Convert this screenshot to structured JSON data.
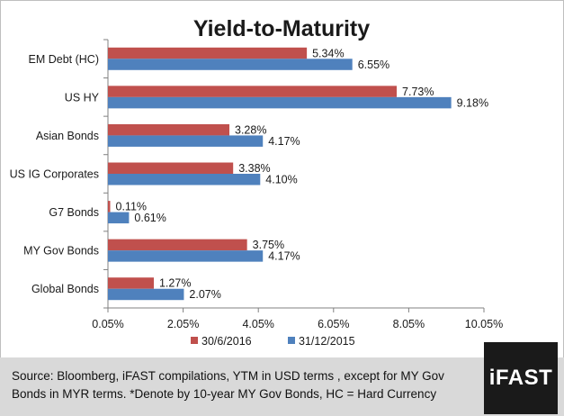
{
  "chart_data": {
    "type": "bar",
    "orientation": "horizontal",
    "title": "Yield-to-Maturity",
    "categories": [
      "EM Debt (HC)",
      "US HY",
      "Asian Bonds",
      "US IG Corporates",
      "G7 Bonds",
      "MY Gov Bonds",
      "Global Bonds"
    ],
    "series": [
      {
        "name": "30/6/2016",
        "color": "#c0504d",
        "values": [
          5.34,
          7.73,
          3.28,
          3.38,
          0.11,
          3.75,
          1.27
        ],
        "labels": [
          "5.34%",
          "7.73%",
          "3.28%",
          "3.38%",
          "0.11%",
          "3.75%",
          "1.27%"
        ]
      },
      {
        "name": "31/12/2015",
        "color": "#4f81bd",
        "values": [
          6.55,
          9.18,
          4.17,
          4.1,
          0.61,
          4.17,
          2.07
        ],
        "labels": [
          "6.55%",
          "9.18%",
          "4.17%",
          "4.10%",
          "0.61%",
          "4.17%",
          "2.07%"
        ]
      }
    ],
    "xlim": [
      0.05,
      10.05
    ],
    "xticks": [
      0.05,
      2.05,
      4.05,
      6.05,
      8.05,
      10.05
    ],
    "xtick_labels": [
      "0.05%",
      "2.05%",
      "4.05%",
      "6.05%",
      "8.05%",
      "10.05%"
    ],
    "grid": false,
    "legend_position": "bottom"
  },
  "footer": {
    "source_line1": "Source: Bloomberg, iFAST compilations, YTM in USD terms , except for MY Gov",
    "source_line2": "Bonds in MYR terms. *Denote by 10-year MY Gov Bonds, HC = Hard Currency",
    "logo_text": "iFAST"
  }
}
